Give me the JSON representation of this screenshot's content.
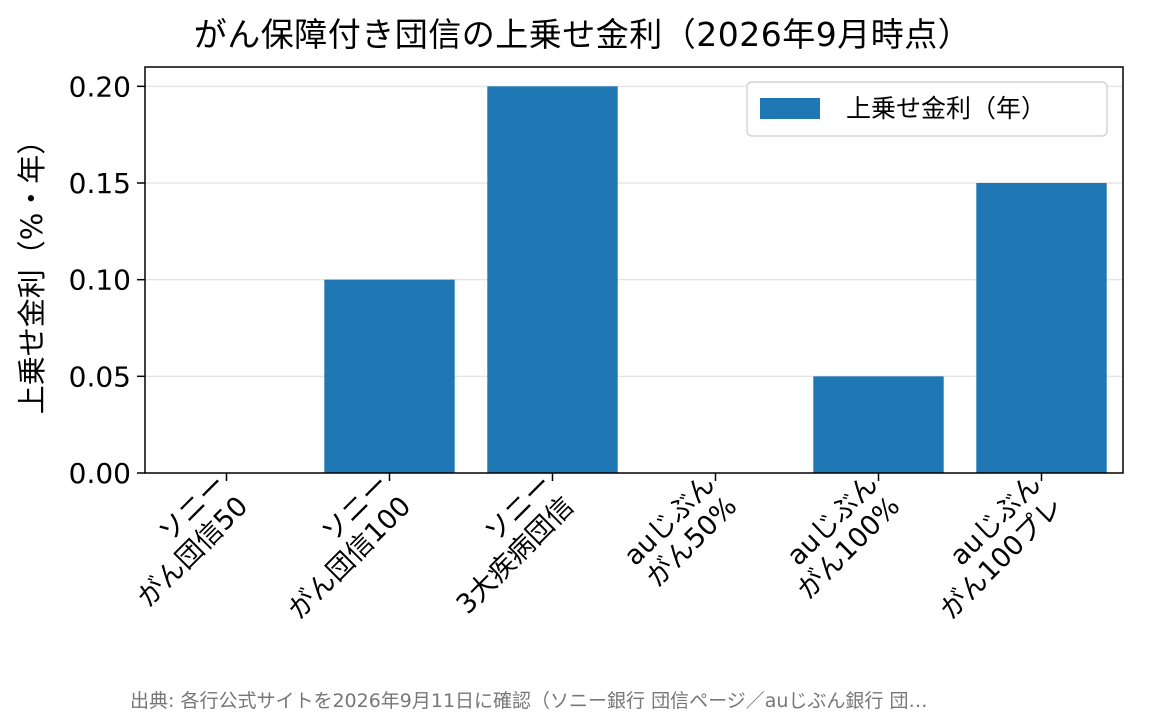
{
  "chart_data": {
    "type": "bar",
    "title": "がん保障付き団信の上乗せ金利（2026年9月時点）",
    "ylabel": "上乗せ金利（%・年）",
    "xlabel": "",
    "categories": [
      [
        "ソニー",
        "がん団信50"
      ],
      [
        "ソニー",
        "がん団信100"
      ],
      [
        "ソニー",
        "3大疾病団信"
      ],
      [
        "auじぶん",
        "がん50%"
      ],
      [
        "auじぶん",
        "がん100%"
      ],
      [
        "auじぶん",
        "がん100プレ"
      ]
    ],
    "series": [
      {
        "name": "上乗せ金利（年）",
        "values": [
          0.0,
          0.1,
          0.2,
          0.0,
          0.05,
          0.15
        ]
      }
    ],
    "yticks": [
      "0.00",
      "0.05",
      "0.10",
      "0.15",
      "0.20"
    ],
    "ylim": [
      0,
      0.21
    ],
    "grid": "horizontal",
    "legend": "top-right",
    "bar_color": "#1f77b4",
    "source": "出典: 各行公式サイトを2026年9月11日に確認（ソニー銀行 団信ページ／auじぶん銀行 団…"
  }
}
